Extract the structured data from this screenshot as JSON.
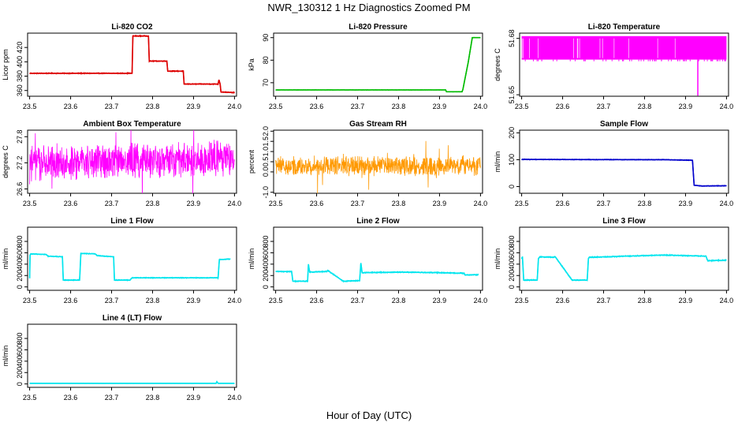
{
  "chart_data": [
    {
      "type": "line",
      "figure_title": "NWR_130312  1 Hz Diagnostics Zoomed PM",
      "xlabel": "Hour of Day (UTC)",
      "title": "Li-820 CO2",
      "ylabel": "Licor ppm",
      "color": "#dd0000",
      "xlim": [
        23.495,
        24.005
      ],
      "xticks": [
        "23.5",
        "23.6",
        "23.7",
        "23.8",
        "23.9",
        "24.0"
      ],
      "ylim": [
        352,
        440
      ],
      "yticks": [
        "360",
        "380",
        "400",
        "420"
      ],
      "noise": 0.6,
      "x": [
        23.5,
        23.75,
        23.752,
        23.79,
        23.792,
        23.835,
        23.837,
        23.875,
        23.877,
        23.96,
        23.962,
        23.965,
        23.967,
        24.0
      ],
      "y": [
        384,
        384,
        436,
        436,
        401,
        401,
        387,
        387,
        369,
        369,
        375,
        369,
        358,
        357
      ]
    },
    {
      "type": "line",
      "title": "Li-820 Pressure",
      "ylabel": "kPa",
      "color": "#00bb00",
      "xlim": [
        23.495,
        24.005
      ],
      "xticks": [
        "23.5",
        "23.6",
        "23.7",
        "23.8",
        "23.9",
        "24.0"
      ],
      "ylim": [
        64,
        92
      ],
      "yticks": [
        "70",
        "80",
        "90"
      ],
      "noise": 0.05,
      "x": [
        23.5,
        23.915,
        23.917,
        23.955,
        23.957,
        23.97,
        23.98,
        24.0
      ],
      "y": [
        66.8,
        66.8,
        66.0,
        66.0,
        67.0,
        79,
        90,
        90
      ]
    },
    {
      "type": "spikes",
      "title": "Li-820 Temperature",
      "ylabel": "degrees C",
      "color": "#ff00ff",
      "xlim": [
        23.495,
        24.005
      ],
      "xticks": [
        "23.5",
        "23.6",
        "23.7",
        "23.8",
        "23.9",
        "24.0"
      ],
      "ylim": [
        51.6492,
        51.6828
      ],
      "yticks": [
        "51.65",
        "51.68"
      ],
      "base": 51.6687,
      "top": 51.6812,
      "spike_low": 51.6495,
      "spike_x": 23.93
    },
    {
      "type": "noise",
      "title": "Ambient Box Temperature",
      "ylabel": "degrees C",
      "color": "#ff00ff",
      "xlim": [
        23.495,
        24.005
      ],
      "xticks": [
        "23.5",
        "23.6",
        "23.7",
        "23.8",
        "23.9",
        "24.0"
      ],
      "ylim": [
        26.5,
        27.95
      ],
      "yticks": [
        "26.6",
        "27.2",
        "27.8"
      ],
      "mean": 27.25,
      "spread": 0.45,
      "trend": 0.12
    },
    {
      "type": "noise",
      "title": "Gas Stream RH",
      "ylabel": "percent",
      "color": "#ff9900",
      "xlim": [
        23.495,
        24.005
      ],
      "xticks": [
        "23.5",
        "23.6",
        "23.7",
        "23.8",
        "23.9",
        "24.0"
      ],
      "ylim": [
        -1.05,
        2.05
      ],
      "yticks": [
        "-1.0",
        "0.0",
        "0.5",
        "1.0",
        "1.5",
        "2.0"
      ],
      "mean": 0.3,
      "spread": 0.55,
      "trend": 0
    },
    {
      "type": "line",
      "title": "Sample Flow",
      "ylabel": "ml/min",
      "color": "#0000cc",
      "xlim": [
        23.495,
        24.005
      ],
      "xticks": [
        "23.5",
        "23.6",
        "23.7",
        "23.8",
        "23.9",
        "24.0"
      ],
      "ylim": [
        -25,
        210
      ],
      "yticks": [
        "0",
        "100",
        "200"
      ],
      "noise": 1.2,
      "x": [
        23.5,
        23.85,
        23.917,
        23.921,
        23.94,
        24.0
      ],
      "y": [
        101,
        100,
        98,
        5,
        2,
        3
      ]
    },
    {
      "type": "line",
      "title": "Line 1 Flow",
      "ylabel": "ml/min",
      "color": "#00e5ee",
      "xlim": [
        23.495,
        24.005
      ],
      "xticks": [
        "23.5",
        "23.6",
        "23.7",
        "23.8",
        "23.9",
        "24.0"
      ],
      "ylim": [
        -60,
        1050
      ],
      "yticks": [
        "0",
        "200",
        "400",
        "600",
        "800"
      ],
      "noise": 7,
      "x": [
        23.5,
        23.501,
        23.503,
        23.54,
        23.545,
        23.58,
        23.582,
        23.622,
        23.625,
        23.66,
        23.665,
        23.705,
        23.707,
        23.745,
        23.75,
        23.96,
        23.963,
        23.99
      ],
      "y": [
        150,
        560,
        580,
        570,
        540,
        530,
        120,
        120,
        590,
        580,
        550,
        530,
        120,
        120,
        160,
        160,
        480,
        490
      ]
    },
    {
      "type": "line",
      "title": "Line 2 Flow",
      "ylabel": "ml/min",
      "color": "#00e5ee",
      "xlim": [
        23.495,
        24.005
      ],
      "xticks": [
        "23.5",
        "23.6",
        "23.7",
        "23.8",
        "23.9",
        "24.0"
      ],
      "ylim": [
        -60,
        1050
      ],
      "yticks": [
        "0",
        "200",
        "400",
        "600",
        "800"
      ],
      "noise": 9,
      "x": [
        23.5,
        23.539,
        23.542,
        23.578,
        23.58,
        23.583,
        23.625,
        23.627,
        23.665,
        23.668,
        23.705,
        23.708,
        23.711,
        23.8,
        23.9,
        23.96,
        23.962,
        23.995
      ],
      "y": [
        270,
        270,
        100,
        100,
        400,
        260,
        270,
        290,
        100,
        100,
        110,
        420,
        250,
        260,
        250,
        240,
        210,
        215
      ]
    },
    {
      "type": "line",
      "title": "Line 3 Flow",
      "ylabel": "ml/min",
      "color": "#00e5ee",
      "xlim": [
        23.495,
        24.005
      ],
      "xticks": [
        "23.5",
        "23.6",
        "23.7",
        "23.8",
        "23.9",
        "24.0"
      ],
      "ylim": [
        -60,
        1050
      ],
      "yticks": [
        "0",
        "200",
        "400",
        "600",
        "800"
      ],
      "noise": 9,
      "x": [
        23.5,
        23.502,
        23.505,
        23.538,
        23.541,
        23.545,
        23.578,
        23.58,
        23.582,
        23.623,
        23.626,
        23.66,
        23.663,
        23.665,
        23.75,
        23.8,
        23.85,
        23.95,
        23.953,
        23.955,
        24.0
      ],
      "y": [
        500,
        530,
        120,
        120,
        500,
        530,
        520,
        530,
        530,
        120,
        120,
        120,
        500,
        520,
        540,
        550,
        560,
        540,
        480,
        460,
        470
      ]
    },
    {
      "type": "line",
      "title": "Line 4 (LT) Flow",
      "ylabel": "ml/min",
      "color": "#00e5ee",
      "xlim": [
        23.495,
        24.005
      ],
      "xticks": [
        "23.5",
        "23.6",
        "23.7",
        "23.8",
        "23.9",
        "24.0"
      ],
      "ylim": [
        -60,
        1050
      ],
      "yticks": [
        "0",
        "200",
        "400",
        "600",
        "800"
      ],
      "noise": 1,
      "x": [
        23.5,
        23.955,
        23.957,
        23.96,
        23.962,
        24.0
      ],
      "y": [
        10,
        10,
        40,
        10,
        10,
        10
      ]
    }
  ]
}
